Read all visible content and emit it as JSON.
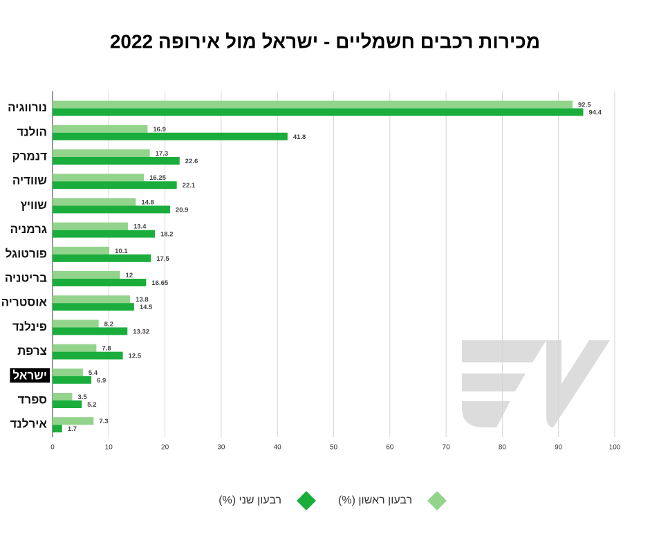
{
  "chart_data": {
    "type": "bar",
    "orientation": "horizontal",
    "title": "מכירות רכבים חשמליים - ישראל מול אירופה 2022",
    "categories": [
      "נורווגיה",
      "הולנד",
      "דנמרק",
      "שוודיה",
      "שוויץ",
      "גרמניה",
      "פורטוגל",
      "בריטניה",
      "אוסטריה",
      "פינלנד",
      "צרפת",
      "ישראל",
      "ספרד",
      "אירלנד"
    ],
    "series": [
      {
        "name": "רבעון ראשון (%)",
        "color": "#93d48c",
        "values": [
          92.5,
          16.9,
          17.3,
          16.25,
          14.8,
          13.4,
          10.1,
          12,
          13.8,
          8.2,
          7.8,
          5.4,
          3.5,
          7.3
        ]
      },
      {
        "name": "רבעון שני (%)",
        "color": "#1aad3c",
        "values": [
          94.4,
          41.8,
          22.6,
          22.1,
          20.9,
          18.2,
          17.5,
          16.65,
          14.5,
          13.32,
          12.5,
          6.9,
          5.2,
          1.7
        ]
      }
    ],
    "xlim": [
      0,
      100
    ],
    "xticks": [
      0,
      10,
      20,
      30,
      40,
      50,
      60,
      70,
      80,
      90,
      100
    ],
    "grid": true,
    "highlight": 11,
    "legend": "bottom"
  }
}
